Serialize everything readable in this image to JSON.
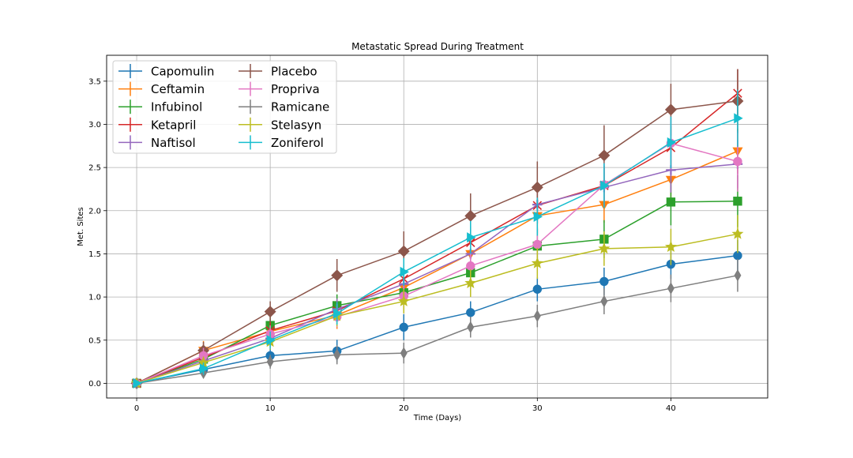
{
  "chart_data": {
    "type": "line",
    "title": "Metastatic Spread During Treatment",
    "xlabel": "Time (Days)",
    "ylabel": "Met. Sites",
    "xlim": [
      -2.25,
      47.25
    ],
    "ylim": [
      -0.17,
      3.8
    ],
    "x_ticks": [
      0,
      10,
      20,
      30,
      40
    ],
    "y_ticks": [
      0.0,
      0.5,
      1.0,
      1.5,
      2.0,
      2.5,
      3.0,
      3.5
    ],
    "x_tick_labels": [
      "0",
      "10",
      "20",
      "30",
      "40"
    ],
    "y_tick_labels": [
      "0.0",
      "0.5",
      "1.0",
      "1.5",
      "2.0",
      "2.5",
      "3.0",
      "3.5"
    ],
    "grid": true,
    "legend_position": "top-left",
    "x": [
      0,
      5,
      10,
      15,
      20,
      25,
      30,
      35,
      40,
      45
    ],
    "series": [
      {
        "name": "Capomulin",
        "color": "#1f77b4",
        "marker": "circle",
        "values": [
          0.0,
          0.16,
          0.32,
          0.375,
          0.65,
          0.82,
          1.09,
          1.18,
          1.38,
          1.48
        ],
        "errors": [
          0,
          0.07,
          0.08,
          0.13,
          0.15,
          0.13,
          0.14,
          0.16,
          0.17,
          0.18
        ]
      },
      {
        "name": "Ceftamin",
        "color": "#ff7f0e",
        "marker": "triangle-down",
        "values": [
          0.0,
          0.38,
          0.6,
          0.79,
          1.11,
          1.5,
          1.94,
          2.07,
          2.36,
          2.69
        ],
        "errors": [
          0,
          0.11,
          0.13,
          0.16,
          0.18,
          0.19,
          0.2,
          0.21,
          0.23,
          0.26
        ]
      },
      {
        "name": "Infubinol",
        "color": "#2ca02c",
        "marker": "square",
        "values": [
          0.0,
          0.28,
          0.67,
          0.9,
          1.05,
          1.28,
          1.59,
          1.67,
          2.1,
          2.11
        ],
        "errors": [
          0,
          0.07,
          0.1,
          0.13,
          0.15,
          0.18,
          0.2,
          0.22,
          0.27,
          0.3
        ]
      },
      {
        "name": "Ketapril",
        "color": "#d62728",
        "marker": "x",
        "values": [
          0.0,
          0.3,
          0.61,
          0.84,
          1.21,
          1.63,
          2.06,
          2.29,
          2.73,
          3.36
        ],
        "errors": [
          0,
          0.09,
          0.1,
          0.13,
          0.16,
          0.18,
          0.21,
          0.23,
          0.25,
          0.28
        ]
      },
      {
        "name": "Naftisol",
        "color": "#9467bd",
        "marker": "plus",
        "values": [
          0.0,
          0.26,
          0.52,
          0.86,
          1.15,
          1.5,
          2.07,
          2.27,
          2.47,
          2.54
        ],
        "errors": [
          0,
          0.08,
          0.1,
          0.12,
          0.15,
          0.18,
          0.21,
          0.23,
          0.26,
          0.28
        ]
      },
      {
        "name": "Placebo",
        "color": "#8c564b",
        "marker": "diamond",
        "values": [
          0.0,
          0.38,
          0.83,
          1.25,
          1.53,
          1.94,
          2.27,
          2.64,
          3.17,
          3.27
        ],
        "errors": [
          0,
          0.1,
          0.12,
          0.19,
          0.23,
          0.26,
          0.3,
          0.35,
          0.3,
          0.37
        ]
      },
      {
        "name": "Propriva",
        "color": "#e377c2",
        "marker": "circle",
        "values": [
          0.0,
          0.32,
          0.57,
          0.77,
          1.01,
          1.36,
          1.61,
          2.3,
          2.78,
          2.57
        ],
        "errors": [
          0,
          0.09,
          0.1,
          0.12,
          0.15,
          0.18,
          0.2,
          0.25,
          0.3,
          0.35
        ]
      },
      {
        "name": "Ramicane",
        "color": "#7f7f7f",
        "marker": "thin-diamond",
        "values": [
          0.0,
          0.12,
          0.25,
          0.33,
          0.35,
          0.65,
          0.78,
          0.95,
          1.1,
          1.25
        ],
        "errors": [
          0,
          0.05,
          0.08,
          0.11,
          0.12,
          0.12,
          0.13,
          0.15,
          0.16,
          0.19
        ]
      },
      {
        "name": "Stelasyn",
        "color": "#bcbd22",
        "marker": "star",
        "values": [
          0.0,
          0.24,
          0.48,
          0.78,
          0.95,
          1.16,
          1.39,
          1.56,
          1.58,
          1.73
        ],
        "errors": [
          0,
          0.07,
          0.09,
          0.12,
          0.14,
          0.16,
          0.18,
          0.2,
          0.21,
          0.22
        ]
      },
      {
        "name": "Zoniferol",
        "color": "#17becf",
        "marker": "triangle-right",
        "values": [
          0.0,
          0.17,
          0.5,
          0.81,
          1.29,
          1.69,
          1.93,
          2.29,
          2.79,
          3.07
        ],
        "errors": [
          0,
          0.07,
          0.1,
          0.13,
          0.16,
          0.19,
          0.22,
          0.26,
          0.3,
          0.33
        ]
      }
    ]
  }
}
